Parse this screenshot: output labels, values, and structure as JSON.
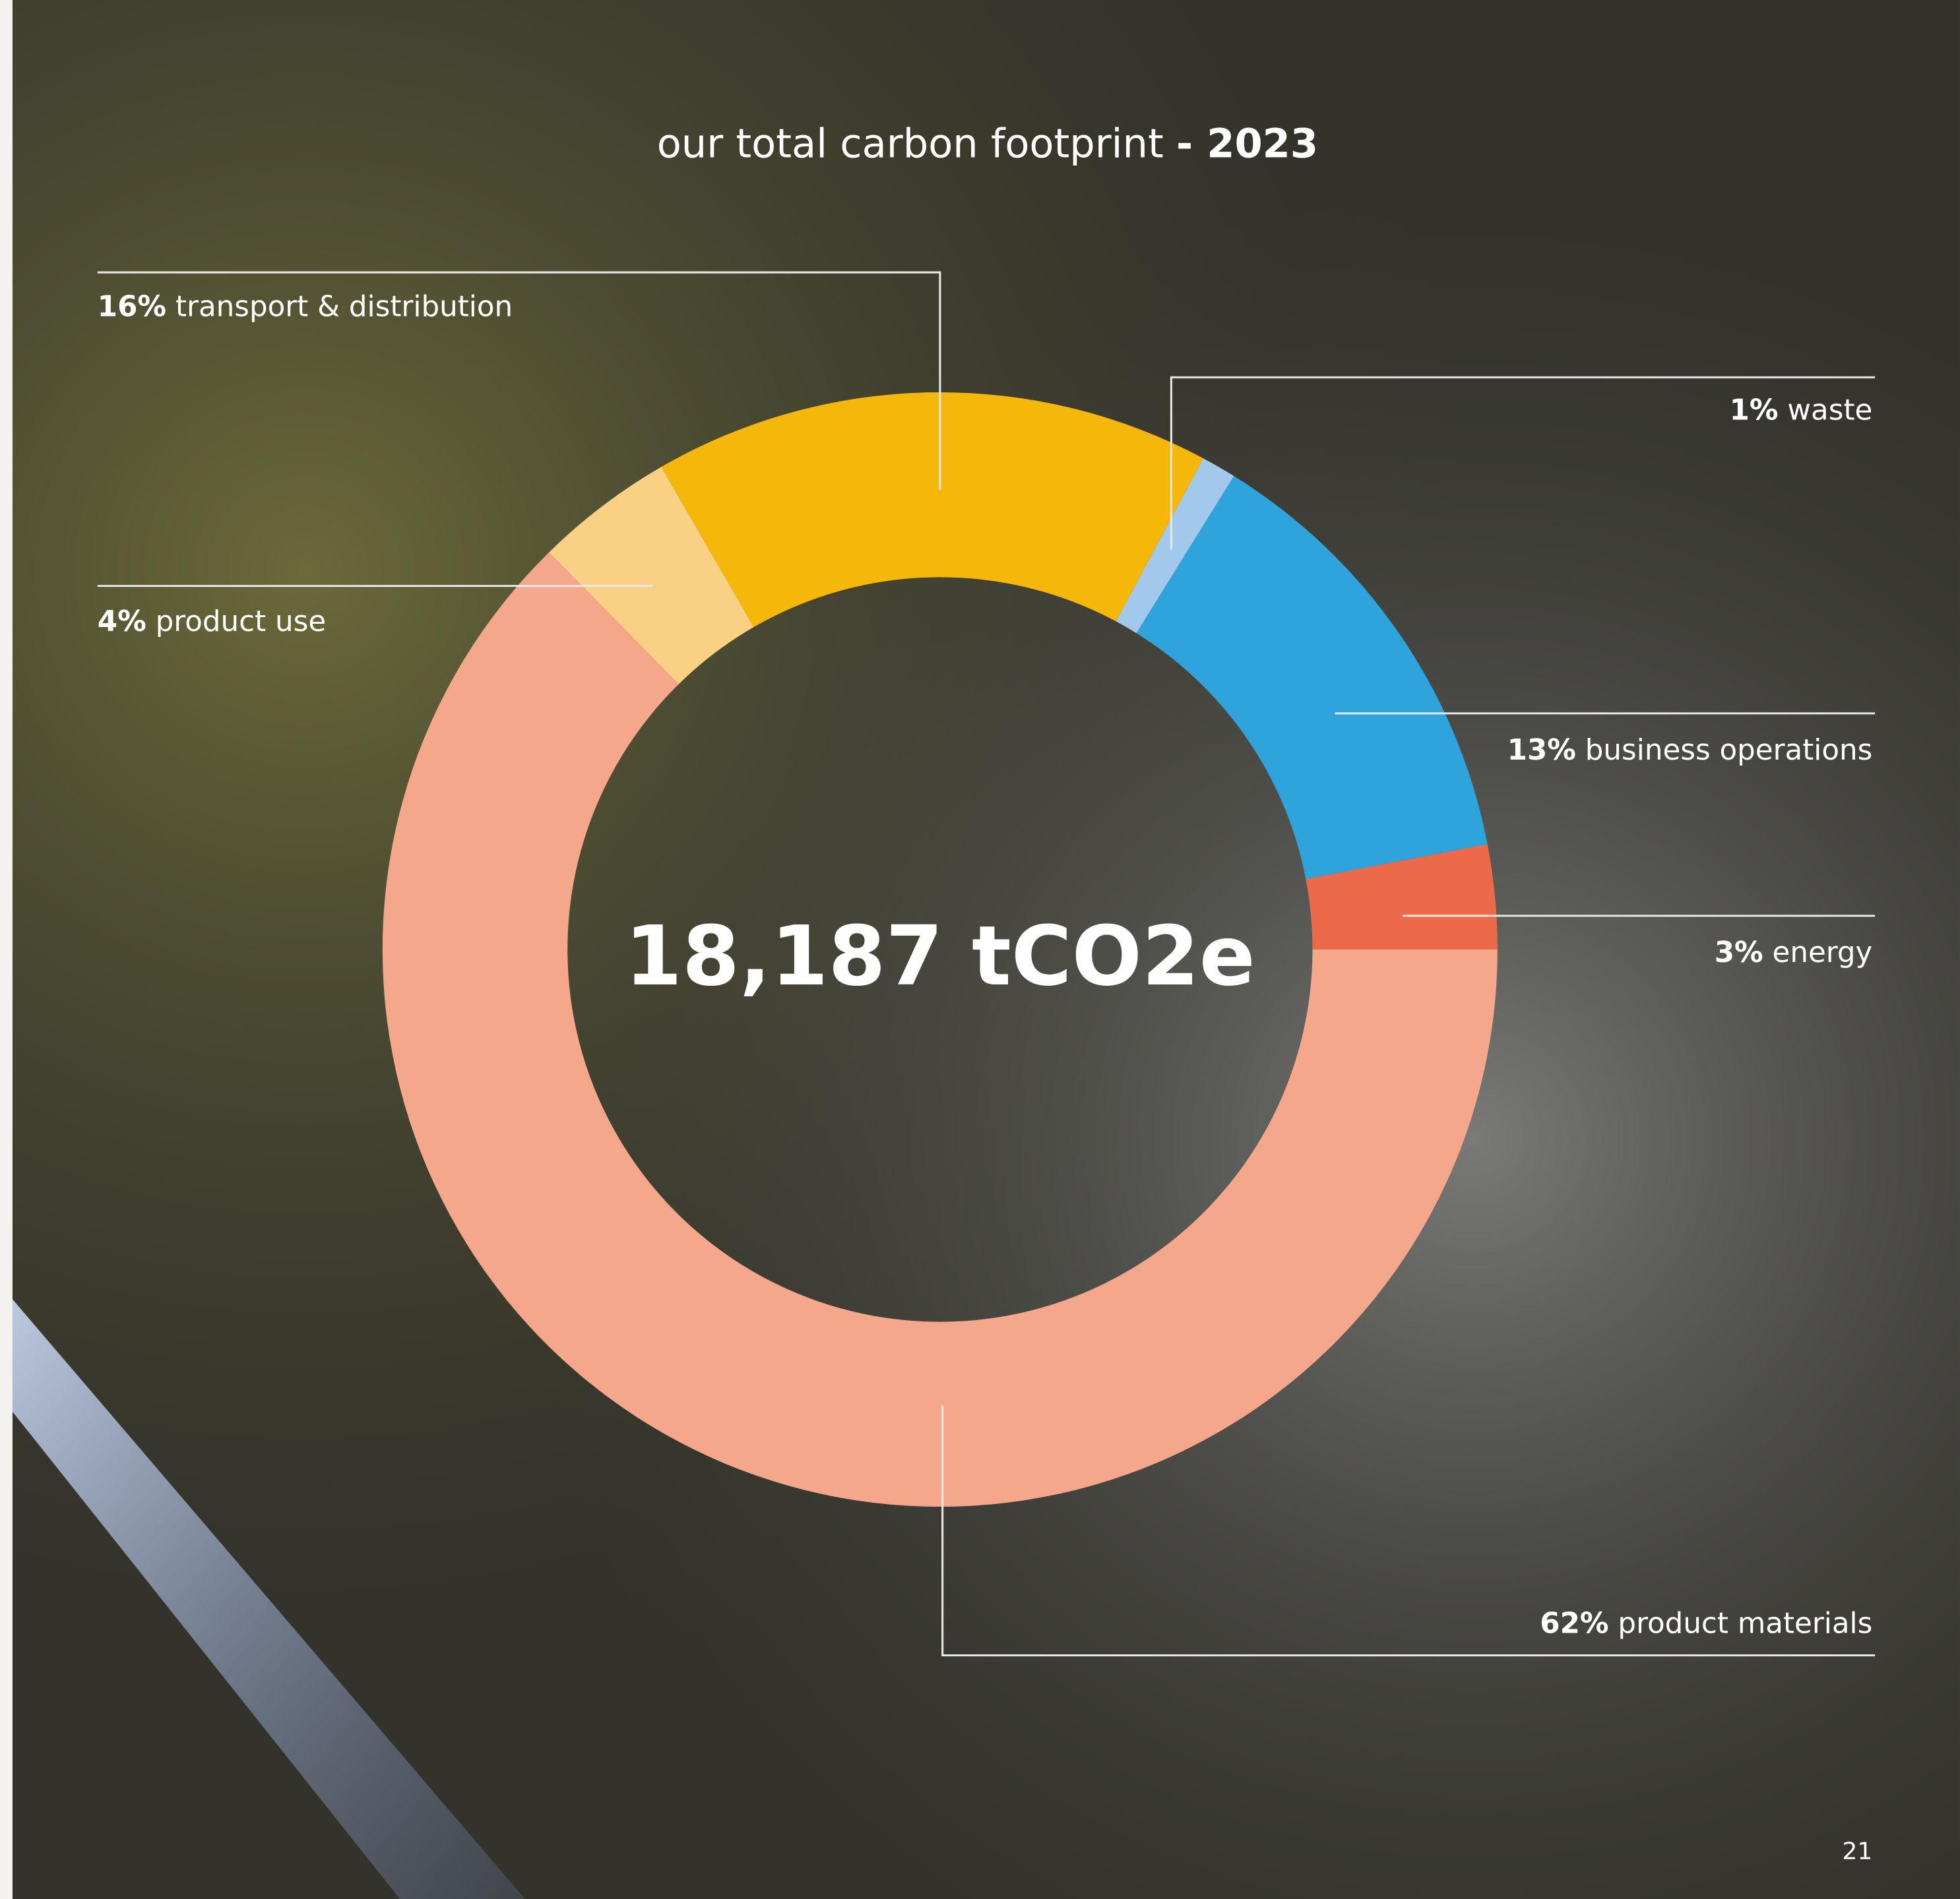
{
  "chart_data": {
    "type": "donut",
    "title": "our total carbon footprint",
    "title_suffix": "- 2023",
    "center_label": "18,187 tCO2e",
    "categories": [
      "energy",
      "business operations",
      "waste",
      "transport & distribution",
      "product use",
      "product materials"
    ],
    "values": [
      3,
      13,
      1,
      16,
      4,
      62
    ],
    "value_labels": [
      "3%",
      "13%",
      "1%",
      "16%",
      "4%",
      "62%"
    ],
    "colors": [
      "#ec694a",
      "#2ea3dc",
      "#a2c8ec",
      "#f5b70a",
      "#f9d084",
      "#f5a78c"
    ]
  },
  "page_number": "21"
}
